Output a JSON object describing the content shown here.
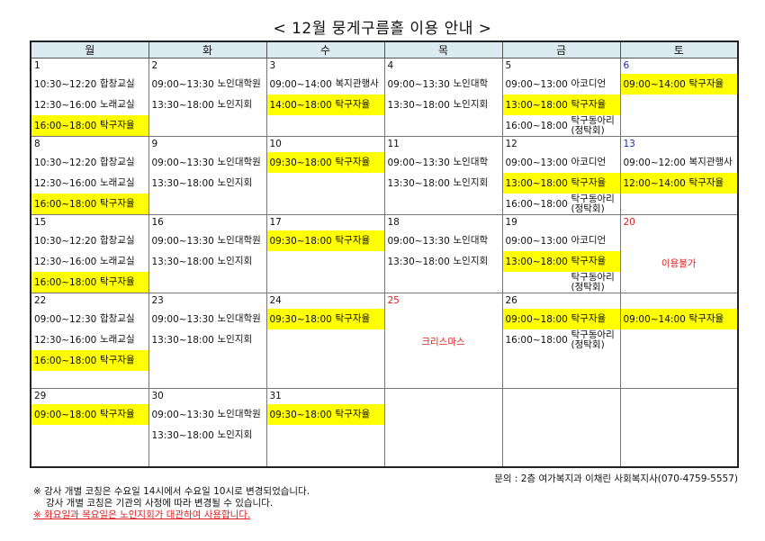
{
  "title": "< 12월 뭉게구름홀 이용 안내 >",
  "weekdays": [
    "월",
    "화",
    "수",
    "목",
    "금",
    "토"
  ],
  "colors": {
    "highlight": "#ffff00",
    "header": "#dcebf1",
    "holiday": "#e02020",
    "saturday": "#1a2fa8"
  },
  "weeks": [
    [
      {
        "date": "1",
        "entries": [
          {
            "time": "10:30~12:20",
            "name": "합창교실"
          },
          {
            "time": "12:30~16:00",
            "name": "노래교실"
          },
          {
            "time": "16:00~18:00",
            "name": "탁구자율",
            "hl": true
          }
        ]
      },
      {
        "date": "2",
        "entries": [
          {
            "time": "09:00~13:30",
            "name": "노인대학원"
          },
          {
            "time": "13:30~18:00",
            "name": "노인지회"
          }
        ]
      },
      {
        "date": "3",
        "entries": [
          {
            "time": "09:00~14:00",
            "name": "복지관행사"
          },
          {
            "time": "14:00~18:00",
            "name": "탁구자율",
            "hl": true
          }
        ]
      },
      {
        "date": "4",
        "entries": [
          {
            "time": "09:00~13:30",
            "name": "노인대학"
          },
          {
            "time": "13:30~18:00",
            "name": "노인지회"
          }
        ]
      },
      {
        "date": "5",
        "entries": [
          {
            "time": "09:00~13:00",
            "name": "아코디언"
          },
          {
            "time": "13:00~18:00",
            "name": "탁구자율",
            "hl": true
          },
          {
            "time": "16:00~18:00",
            "name": "탁구동아리",
            "sub": "(정탁회)"
          }
        ]
      },
      {
        "date": "6",
        "sat": true,
        "entries": [
          {
            "time": "09:00~14:00",
            "name": "탁구자율",
            "hl": true
          }
        ]
      }
    ],
    [
      {
        "date": "8",
        "entries": [
          {
            "time": "10:30~12:20",
            "name": "합창교실"
          },
          {
            "time": "12:30~16:00",
            "name": "노래교실"
          },
          {
            "time": "16:00~18:00",
            "name": "탁구자율",
            "hl": true
          }
        ]
      },
      {
        "date": "9",
        "entries": [
          {
            "time": "09:00~13:30",
            "name": "노인대학원"
          },
          {
            "time": "13:30~18:00",
            "name": "노인지회"
          }
        ]
      },
      {
        "date": "10",
        "entries": [
          {
            "time": "09:30~18:00",
            "name": "탁구자율",
            "hl": true
          }
        ]
      },
      {
        "date": "11",
        "entries": [
          {
            "time": "09:00~13:30",
            "name": "노인대학"
          },
          {
            "time": "13:30~18:00",
            "name": "노인지회"
          }
        ]
      },
      {
        "date": "12",
        "entries": [
          {
            "time": "09:00~13:00",
            "name": "아코디언"
          },
          {
            "time": "13:00~18:00",
            "name": "탁구자율",
            "hl": true
          },
          {
            "time": "16:00~18:00",
            "name": "탁구동아리",
            "sub": "(정탁회)"
          }
        ]
      },
      {
        "date": "13",
        "sat": true,
        "entries": [
          {
            "time": "09:00~12:00",
            "name": "복지관행사"
          },
          {
            "time": "12:00~14:00",
            "name": "탁구자율",
            "hl": true
          }
        ]
      }
    ],
    [
      {
        "date": "15",
        "entries": [
          {
            "time": "10:30~12:20",
            "name": "합창교실"
          },
          {
            "time": "12:30~16:00",
            "name": "노래교실"
          },
          {
            "time": "16:00~18:00",
            "name": "탁구자율",
            "hl": true
          }
        ]
      },
      {
        "date": "16",
        "entries": [
          {
            "time": "09:00~13:30",
            "name": "노인대학원"
          },
          {
            "time": "13:30~18:00",
            "name": "노인지회"
          }
        ]
      },
      {
        "date": "17",
        "entries": [
          {
            "time": "09:30~18:00",
            "name": "탁구자율",
            "hl": true
          }
        ]
      },
      {
        "date": "18",
        "entries": [
          {
            "time": "09:00~13:30",
            "name": "노인대학"
          },
          {
            "time": "13:30~18:00",
            "name": "노인지회"
          }
        ]
      },
      {
        "date": "19",
        "entries": [
          {
            "time": "09:00~13:00",
            "name": "아코디언"
          },
          {
            "time": "13:00~18:00",
            "name": "탁구자율",
            "hl": true
          },
          {
            "time": "",
            "name": "탁구동아리",
            "sub": "(정탁회)"
          }
        ]
      },
      {
        "date": "20",
        "holiday": true,
        "entries": [],
        "center": "이용불가"
      }
    ],
    [
      {
        "date": "22",
        "entries": [
          {
            "time": "09:00~12:30",
            "name": "합창교실"
          },
          {
            "time": "12:30~16:00",
            "name": "노래교실"
          },
          {
            "time": "16:00~18:00",
            "name": "탁구자율",
            "hl": true
          }
        ]
      },
      {
        "date": "23",
        "entries": [
          {
            "time": "09:00~13:30",
            "name": "노인대학원"
          },
          {
            "time": "13:30~18:00",
            "name": "노인지회"
          }
        ]
      },
      {
        "date": "24",
        "entries": [
          {
            "time": "09:30~18:00",
            "name": "탁구자율",
            "hl": true
          }
        ]
      },
      {
        "date": "25",
        "holiday": true,
        "entries": [],
        "center": "크리스마스"
      },
      {
        "date": "26",
        "entries": [
          {
            "time": "09:00~18:00",
            "name": "탁구자율",
            "hl": true
          },
          {
            "time": "16:00~18:00",
            "name": "탁구동아리",
            "sub": "(정탁회)"
          }
        ]
      },
      {
        "date": "",
        "entries": [
          {
            "time": "09:00~14:00",
            "name": "탁구자율",
            "hl": true
          }
        ]
      }
    ],
    [
      {
        "date": "29",
        "entries": [
          {
            "time": "09:00~18:00",
            "name": "탁구자율",
            "hl": true
          }
        ]
      },
      {
        "date": "30",
        "entries": [
          {
            "time": "09:00~13:30",
            "name": "노인대학원"
          },
          {
            "time": "13:30~18:00",
            "name": "노인지회"
          }
        ]
      },
      {
        "date": "31",
        "entries": [
          {
            "time": "09:30~18:00",
            "name": "탁구자율",
            "hl": true
          }
        ]
      },
      {
        "date": "",
        "entries": []
      },
      {
        "date": "",
        "entries": []
      },
      {
        "date": "",
        "entries": []
      }
    ]
  ],
  "contact": "문의 : 2층 여가복지과 이채린 사회복지사(070-4759-5557)",
  "notes": [
    "※ 강사 개별 코칭은 수요일 14시에서 수요일 10시로 변경되었습니다.",
    "강사 개별 코칭은 기관의 사정에 따라 변경될 수 있습니다.",
    "※ 화요일과 목요일은 노인지회가 대관하여 사용합니다."
  ]
}
